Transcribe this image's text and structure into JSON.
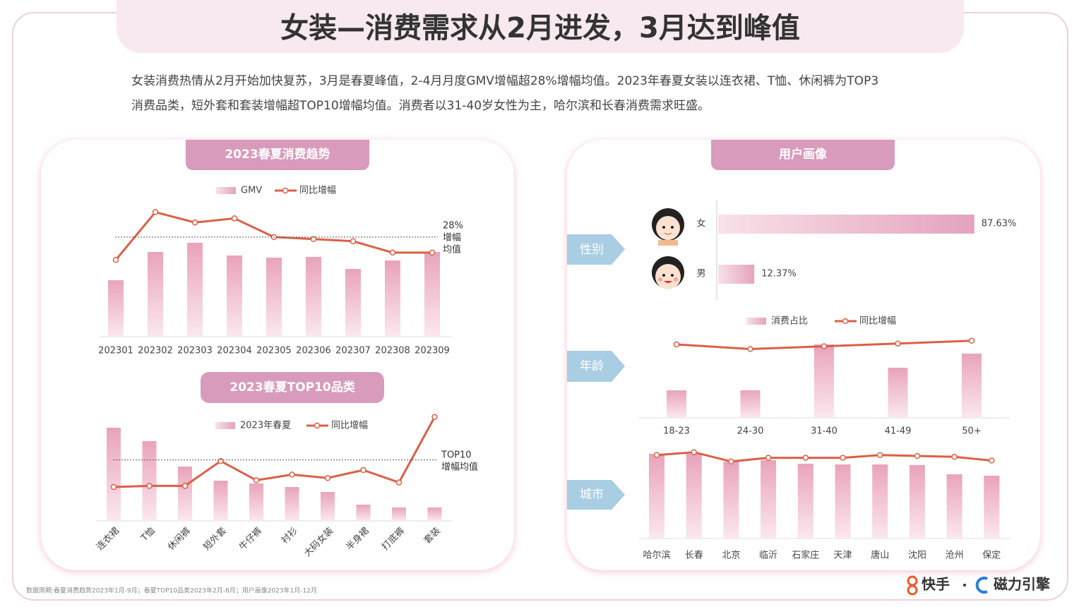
{
  "header": {
    "title": "女装—消费需求从2月进发，3月达到峰值"
  },
  "description": [
    "女装消费热情从2月开始加快复苏，3月是春夏峰值，2-4月月度GMV增幅超28%增幅均值。2023年春夏女装以连衣裙、T恤、休闲裤为TOP3",
    "消费品类，短外套和套装增幅超TOP10增幅均值。消费者以31-40岁女性为主，哈尔滨和长春消费需求旺盛。"
  ],
  "right_panel": {
    "title": "用户画像"
  },
  "chart_data": [
    {
      "type": "combo",
      "title": "2023春夏消费趋势",
      "categories": [
        "202301",
        "202302",
        "202303",
        "202304",
        "202305",
        "202306",
        "202307",
        "202308",
        "202309"
      ],
      "series": [
        {
          "name": "GMV",
          "color": "#eba8bf",
          "values": [
            80,
            120,
            133,
            115,
            112,
            113,
            96,
            108,
            120
          ]
        },
        {
          "name": "同比增幅",
          "color": "#dd5f45",
          "axis": "y2",
          "values": [
            17,
            40,
            35,
            37,
            28,
            27,
            26,
            20.5,
            20.5
          ]
        }
      ],
      "ylim": [
        0,
        200
      ],
      "y2lim": [
        -20,
        48
      ],
      "reference": {
        "value": 28,
        "label": [
          "28%",
          "增幅",
          "均值"
        ]
      }
    },
    {
      "type": "combo",
      "title": "2023春夏TOP10品类",
      "categories": [
        "连衣裙",
        "T恤",
        "休闲裤",
        "短外套",
        "牛仔裤",
        "衬衫",
        "大码女装",
        "半身裙",
        "打底裤",
        "套装"
      ],
      "series": [
        {
          "name": "2023年春夏",
          "color": "#eba8bf",
          "values": [
            132,
            113,
            77,
            57,
            53,
            48,
            41,
            23,
            19,
            19
          ]
        },
        {
          "name": "同比增幅",
          "color": "#dd5f45",
          "axis": "y2",
          "values": [
            30,
            31,
            31,
            53,
            36,
            41,
            38,
            45,
            34,
            92
          ]
        }
      ],
      "ylim": [
        0,
        160
      ],
      "y2lim": [
        0,
        100
      ],
      "reference": {
        "value": 54,
        "label": [
          "TOP10",
          "增幅均值"
        ]
      }
    },
    {
      "type": "bar",
      "orientation": "horizontal",
      "section": "性别",
      "categories": [
        "女",
        "男"
      ],
      "values": [
        87.63,
        12.37
      ],
      "value_labels": [
        "87.63%",
        "12.37%"
      ],
      "color": "#e4a3bd",
      "xlim": [
        0,
        100
      ]
    },
    {
      "type": "combo",
      "section": "年龄",
      "categories": [
        "18-23",
        "24-30",
        "31-40",
        "41-49",
        "50+"
      ],
      "series": [
        {
          "name": "消费占比",
          "color": "#eba8bf",
          "values": [
            39,
            39,
            104,
            71,
            91
          ]
        },
        {
          "name": "同比增幅",
          "color": "#dd5f45",
          "axis": "y2",
          "values": [
            80,
            75,
            78,
            81,
            84
          ]
        }
      ],
      "ylim": [
        0,
        130
      ],
      "y2lim": [
        0,
        100
      ]
    },
    {
      "type": "combo",
      "section": "城市",
      "categories": [
        "哈尔滨",
        "长春",
        "北京",
        "临沂",
        "石家庄",
        "天津",
        "唐山",
        "沈阳",
        "沧州",
        "保定"
      ],
      "series": [
        {
          "color": "#eba8bf",
          "values": [
            120,
            120,
            109,
            111,
            106,
            105,
            105,
            104,
            91,
            89
          ]
        },
        {
          "color": "#dd5f45",
          "axis": "y2",
          "values": [
            91,
            94,
            84,
            88,
            88,
            88,
            91,
            90,
            89,
            85
          ]
        }
      ],
      "ylim": [
        0,
        130
      ],
      "y2lim": [
        0,
        100
      ]
    }
  ],
  "footer": {
    "note": "数据周期:春夏消费趋势2023年1月-9月；春夏TOP10品类2023年2月-8月；用户画像2023年1月-12月",
    "brand_1": "快手",
    "brand_2": "磁力引擎"
  }
}
